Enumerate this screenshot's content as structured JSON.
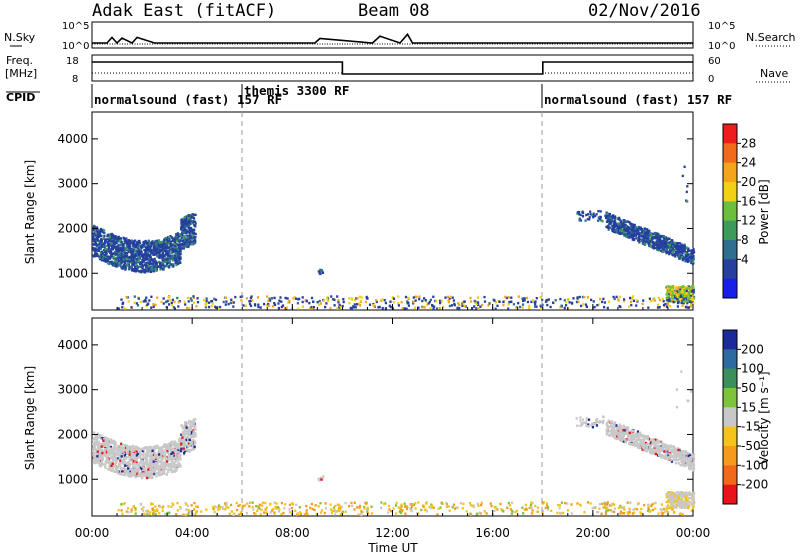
{
  "header": {
    "station": "Adak East (fitACF)",
    "beam": "Beam 08",
    "date": "02/Nov/2016"
  },
  "panel_labels": {
    "nsky": "N.Sky",
    "nsearch": "N.Search",
    "freq_line1": "Freq.",
    "freq_line2": "[MHz]",
    "nave": "Nave",
    "cpid": "CPID",
    "nsky_ticks": [
      "10^5",
      "10^0"
    ],
    "nsearch_ticks": [
      "10^5",
      "10^0"
    ],
    "freq_ticks": [
      "18",
      "8"
    ],
    "nave_ticks": [
      "60",
      "0"
    ]
  },
  "cpid_segments": [
    {
      "label": "normalsound (fast) 157 RF",
      "start": 0
    },
    {
      "label": "themis 3300 RF",
      "start": 6
    },
    {
      "label": "normalsound (fast) 157 RF",
      "start": 18
    }
  ],
  "power_colorbar": {
    "title": "Power [dB]",
    "ticks": [
      "28",
      "24",
      "20",
      "16",
      "12",
      "8",
      "4"
    ],
    "colors": [
      "#ee1c1c",
      "#f26b1b",
      "#f5a51a",
      "#f2d016",
      "#6bbf3a",
      "#3b9a5c",
      "#2f6e8e",
      "#253f9e",
      "#1a1fe8"
    ]
  },
  "velocity_colorbar": {
    "title": "Velocity [m s⁻¹]",
    "ticks": [
      "200",
      "100",
      "50",
      "15",
      "-15",
      "-50",
      "-100",
      "-200"
    ],
    "colors": [
      "#1d2b9a",
      "#2e6aa0",
      "#3a8f5a",
      "#7cc43a",
      "#c8c8c8",
      "#f5c31a",
      "#f59a1a",
      "#f06a1a",
      "#e8141a"
    ]
  },
  "x_axis": {
    "label": "Time UT",
    "ticks": [
      "00:00",
      "04:00",
      "08:00",
      "12:00",
      "16:00",
      "20:00",
      "00:00"
    ]
  },
  "chart_data": [
    {
      "type": "line",
      "name": "nsky-nsearch",
      "x": [
        0,
        0.6,
        0.8,
        1.0,
        1.2,
        1.6,
        1.8,
        2.5,
        8.9,
        9.1,
        11.2,
        11.5,
        12.3,
        12.6,
        12.8,
        14,
        20,
        24
      ],
      "y": [
        1,
        1,
        30,
        1,
        20,
        1,
        30,
        1,
        1,
        15,
        1,
        60,
        1,
        200,
        1,
        1,
        1,
        1
      ],
      "yscale": "log",
      "ylim": [
        1,
        100000
      ]
    },
    {
      "type": "line",
      "name": "frequency",
      "x": [
        0,
        0.01,
        6,
        10,
        18,
        24
      ],
      "y": [
        15.5,
        15.5,
        15.5,
        10.5,
        15.5,
        15.5
      ],
      "ylim": [
        8,
        18
      ]
    },
    {
      "type": "scatter",
      "name": "power",
      "ylabel": "Slant Range [km]",
      "ylim": [
        180,
        4600
      ],
      "yticks": [
        1000,
        2000,
        3000,
        4000
      ],
      "xlim": [
        0,
        24
      ]
    },
    {
      "type": "scatter",
      "name": "velocity",
      "ylabel": "Slant Range [km]",
      "ylim": [
        180,
        4600
      ],
      "yticks": [
        1000,
        2000,
        3000,
        4000
      ],
      "xlim": [
        0,
        24
      ]
    }
  ]
}
